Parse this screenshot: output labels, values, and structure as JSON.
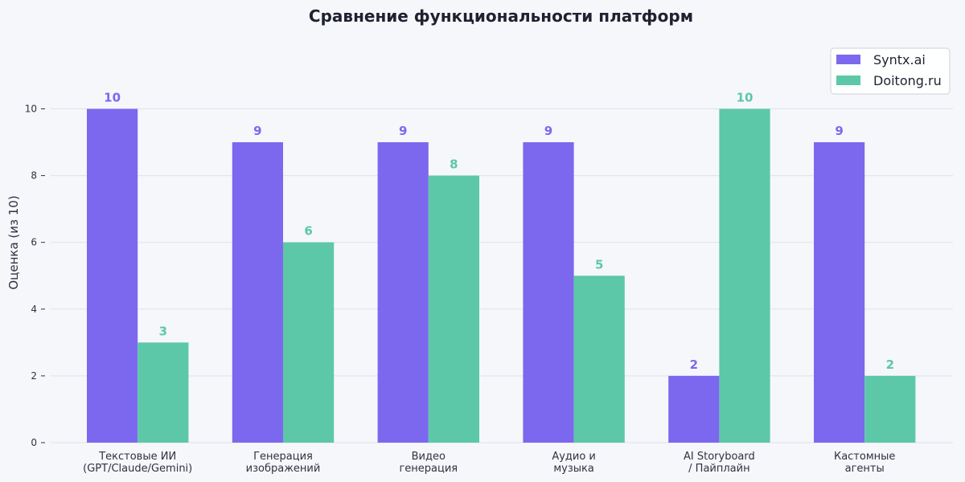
{
  "chart_data": {
    "type": "bar",
    "title": "Сравнение функциональности платформ",
    "xlabel": "",
    "ylabel": "Оценка (из 10)",
    "ylim": [
      0,
      11
    ],
    "yticks": [
      0,
      2,
      4,
      6,
      8,
      10
    ],
    "grid": true,
    "legend_position": "top-right",
    "categories": [
      [
        "Текстовые ИИ",
        "(GPT/Claude/Gemini)"
      ],
      [
        "Генерация",
        "изображений"
      ],
      [
        "Видео",
        "генерация"
      ],
      [
        "Аудио и",
        "музыка"
      ],
      [
        "AI Storyboard",
        "/ Пайплайн"
      ],
      [
        "Кастомные",
        "агенты"
      ]
    ],
    "series": [
      {
        "name": "Syntx.ai",
        "color": "#7b68ee",
        "values": [
          10,
          9,
          9,
          9,
          2,
          9
        ]
      },
      {
        "name": "Doitong.ru",
        "color": "#5cc8a8",
        "values": [
          3,
          6,
          8,
          5,
          10,
          2
        ]
      }
    ]
  }
}
